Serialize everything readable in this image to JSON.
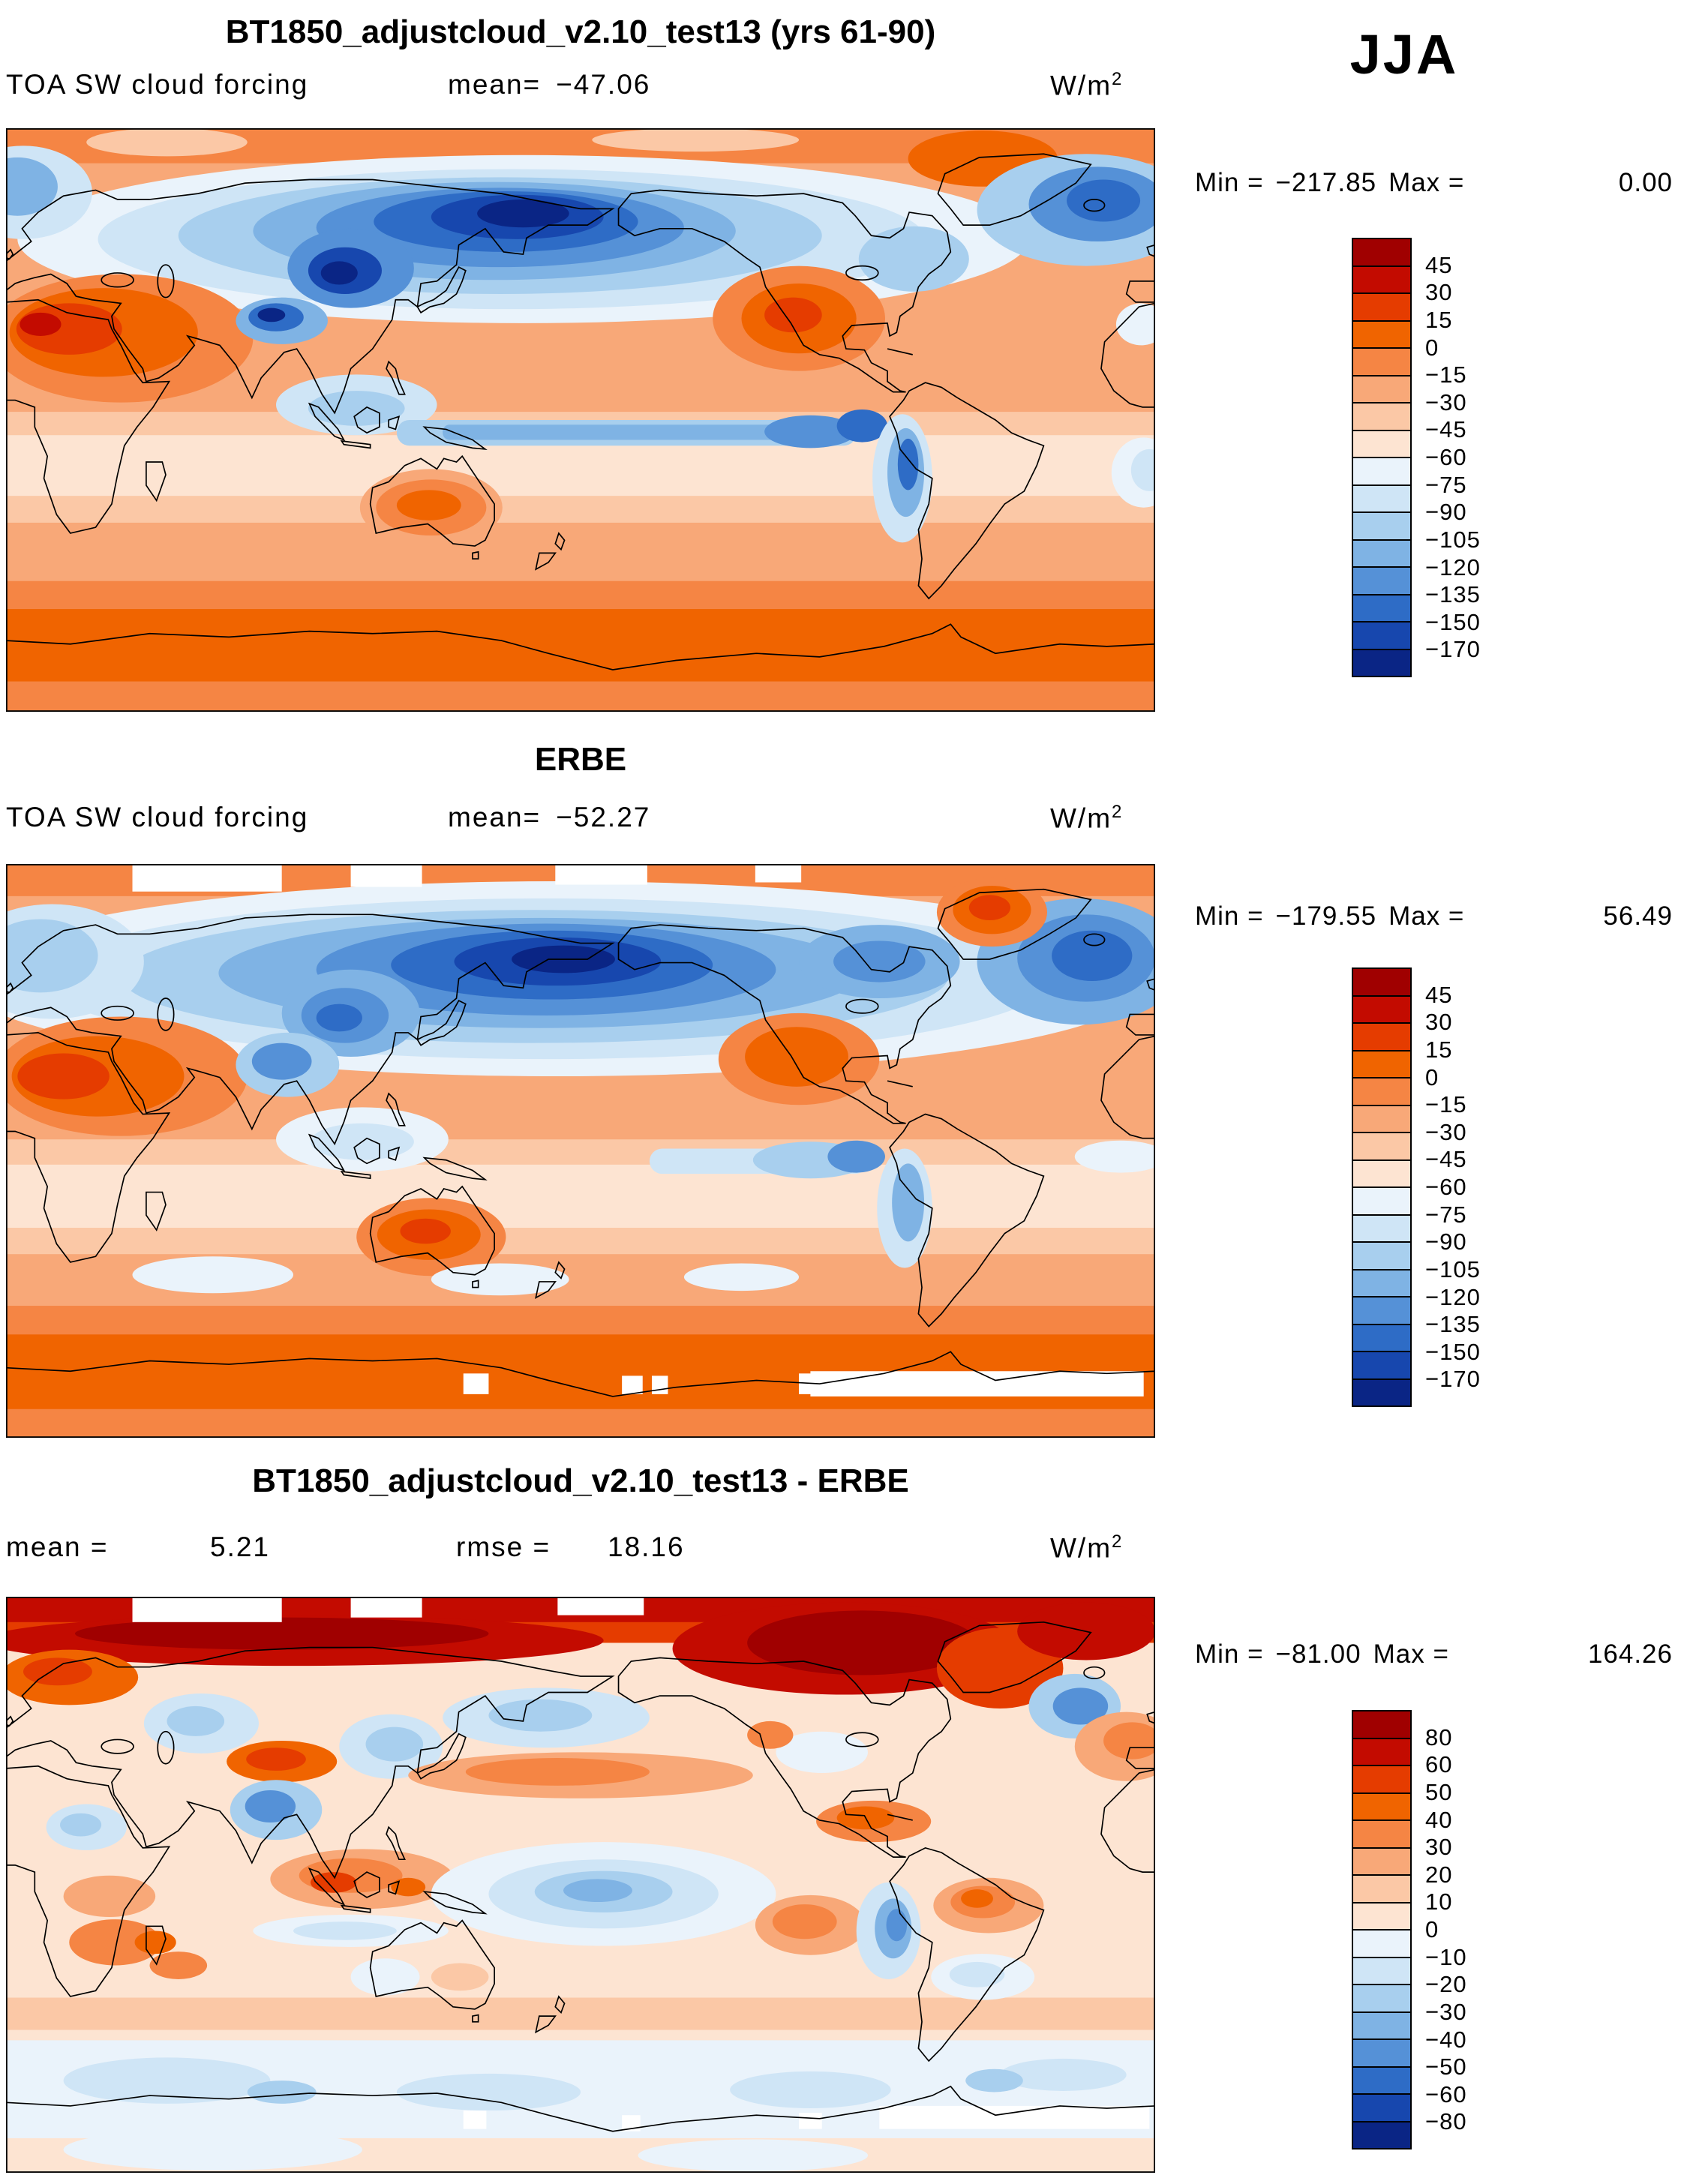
{
  "season_label": "JJA",
  "panels": [
    {
      "title": "BT1850_adjustcloud_v2.10_test13 (yrs 61-90)",
      "field_label": "TOA SW cloud forcing",
      "mean_label": "mean=",
      "mean_value": "−47.06",
      "units_base": "W/m",
      "units_exp": "2",
      "min_label": "Min =",
      "min_value": "−217.85",
      "max_label": "Max =",
      "max_value": "0.00",
      "colorbar_labels": [
        "45",
        "30",
        "15",
        "0",
        "−15",
        "−30",
        "−45",
        "−60",
        "−75",
        "−90",
        "−105",
        "−120",
        "−135",
        "−150",
        "−170"
      ]
    },
    {
      "title": "ERBE",
      "field_label": "TOA SW cloud forcing",
      "mean_label": "mean=",
      "mean_value": "−52.27",
      "units_base": "W/m",
      "units_exp": "2",
      "min_label": "Min =",
      "min_value": "−179.55",
      "max_label": "Max =",
      "max_value": "56.49",
      "colorbar_labels": [
        "45",
        "30",
        "15",
        "0",
        "−15",
        "−30",
        "−45",
        "−60",
        "−75",
        "−90",
        "−105",
        "−120",
        "−135",
        "−150",
        "−170"
      ]
    },
    {
      "title": "BT1850_adjustcloud_v2.10_test13 - ERBE",
      "mean_label": "mean =",
      "mean_value": "5.21",
      "rmse_label": "rmse =",
      "rmse_value": "18.16",
      "units_base": "W/m",
      "units_exp": "2",
      "min_label": "Min =",
      "min_value": "−81.00",
      "max_label": "Max =",
      "max_value": "164.26",
      "colorbar_labels": [
        "80",
        "60",
        "50",
        "40",
        "30",
        "20",
        "10",
        "0",
        "−10",
        "−20",
        "−30",
        "−40",
        "−50",
        "−60",
        "−80"
      ]
    }
  ],
  "palette": [
    "#a00000",
    "#c30b00",
    "#e53c00",
    "#f06400",
    "#f58544",
    "#f8a878",
    "#fbc8a6",
    "#fde4d2",
    "#eaf3fb",
    "#cfe5f6",
    "#a8cfee",
    "#7fb3e4",
    "#5591d7",
    "#2e6cc6",
    "#1747ae",
    "#0a2585"
  ],
  "chart_data": {
    "type": "heatmap",
    "subtype": "global filled-contour maps (cylindrical lat-lon, 0-360E)",
    "season": "JJA",
    "variable": "TOA SW cloud forcing",
    "units": "W/m^2",
    "panels": [
      {
        "title": "BT1850_adjustcloud_v2.10_test13 (yrs 61-90)",
        "mean": -47.06,
        "min": -217.85,
        "max": 0.0,
        "contour_levels": [
          45,
          30,
          15,
          0,
          -15,
          -30,
          -45,
          -60,
          -75,
          -90,
          -105,
          -120,
          -135,
          -150,
          -170
        ]
      },
      {
        "title": "ERBE",
        "mean": -52.27,
        "min": -179.55,
        "max": 56.49,
        "contour_levels": [
          45,
          30,
          15,
          0,
          -15,
          -30,
          -45,
          -60,
          -75,
          -90,
          -105,
          -120,
          -135,
          -150,
          -170
        ]
      },
      {
        "title": "BT1850_adjustcloud_v2.10_test13 - ERBE",
        "mean": 5.21,
        "rmse": 18.16,
        "min": -81.0,
        "max": 164.26,
        "contour_levels": [
          80,
          60,
          50,
          40,
          30,
          20,
          10,
          0,
          -10,
          -20,
          -30,
          -40,
          -50,
          -60,
          -80
        ]
      }
    ],
    "legend_position": "right colorbar per panel, labels at cell boundaries",
    "grid": false
  }
}
